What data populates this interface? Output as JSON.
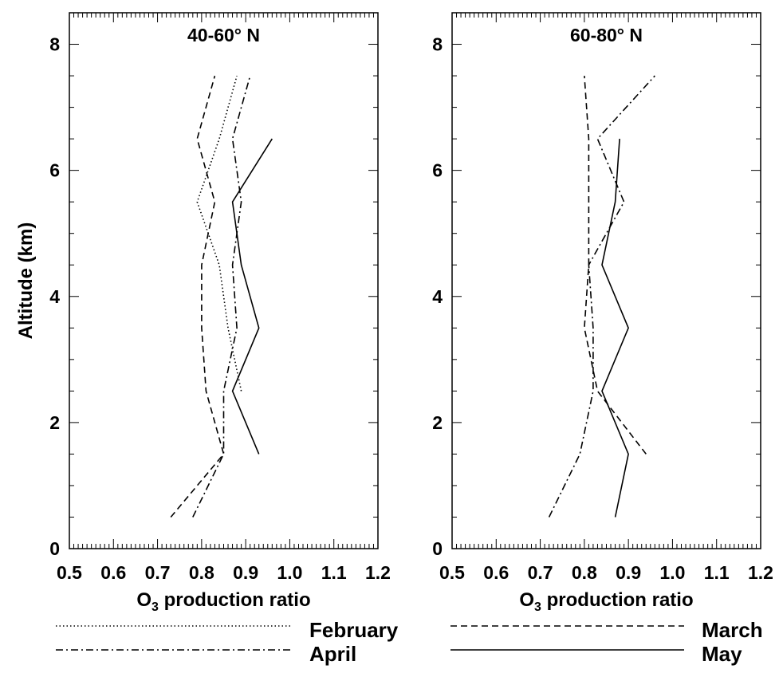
{
  "chart_data": [
    {
      "type": "line",
      "title": "40-60° N",
      "xlabel": "O3 production ratio",
      "xlabel_main": "O",
      "xlabel_sub": "3",
      "xlabel_rest": " production ratio",
      "ylabel": "Altitude (km)",
      "xlim": [
        0.5,
        1.2
      ],
      "ylim": [
        0,
        8.5
      ],
      "xticks": [
        "0.5",
        "0.6",
        "0.7",
        "0.8",
        "0.9",
        "1.0",
        "1.1",
        "1.2"
      ],
      "yticks": [
        "0",
        "2",
        "4",
        "6",
        "8"
      ],
      "series": [
        {
          "name": "February",
          "points": [
            [
              0.89,
              2.5
            ],
            [
              0.86,
              3.5
            ],
            [
              0.84,
              4.5
            ],
            [
              0.79,
              5.5
            ],
            [
              0.84,
              6.5
            ],
            [
              0.88,
              7.5
            ]
          ]
        },
        {
          "name": "March",
          "points": [
            [
              0.73,
              0.5
            ],
            [
              0.85,
              1.5
            ],
            [
              0.81,
              2.5
            ],
            [
              0.8,
              3.5
            ],
            [
              0.8,
              4.5
            ],
            [
              0.83,
              5.5
            ],
            [
              0.79,
              6.5
            ],
            [
              0.83,
              7.5
            ]
          ]
        },
        {
          "name": "April",
          "points": [
            [
              0.78,
              0.5
            ],
            [
              0.85,
              1.5
            ],
            [
              0.85,
              2.5
            ],
            [
              0.88,
              3.5
            ],
            [
              0.87,
              4.5
            ],
            [
              0.89,
              5.5
            ],
            [
              0.87,
              6.5
            ],
            [
              0.91,
              7.5
            ]
          ]
        },
        {
          "name": "May",
          "points": [
            [
              0.93,
              1.5
            ],
            [
              0.87,
              2.5
            ],
            [
              0.93,
              3.5
            ],
            [
              0.89,
              4.5
            ],
            [
              0.87,
              5.5
            ],
            [
              0.96,
              6.5
            ]
          ]
        }
      ]
    },
    {
      "type": "line",
      "title": "60-80° N",
      "xlabel": "O3 production ratio",
      "xlabel_main": "O",
      "xlabel_sub": "3",
      "xlabel_rest": " production ratio",
      "ylabel": "",
      "xlim": [
        0.5,
        1.2
      ],
      "ylim": [
        0,
        8.5
      ],
      "xticks": [
        "0.5",
        "0.6",
        "0.7",
        "0.8",
        "0.9",
        "1.0",
        "1.1",
        "1.2"
      ],
      "yticks": [
        "0",
        "2",
        "4",
        "6",
        "8"
      ],
      "series": [
        {
          "name": "March",
          "points": [
            [
              0.94,
              1.5
            ],
            [
              0.83,
              2.5
            ],
            [
              0.8,
              3.5
            ],
            [
              0.81,
              4.5
            ],
            [
              0.81,
              5.5
            ],
            [
              0.81,
              6.5
            ],
            [
              0.8,
              7.5
            ]
          ]
        },
        {
          "name": "April",
          "points": [
            [
              0.72,
              0.5
            ],
            [
              0.79,
              1.5
            ],
            [
              0.82,
              2.5
            ],
            [
              0.82,
              3.5
            ],
            [
              0.81,
              4.5
            ],
            [
              0.89,
              5.5
            ],
            [
              0.83,
              6.5
            ],
            [
              0.96,
              7.5
            ]
          ]
        },
        {
          "name": "May",
          "points": [
            [
              0.87,
              0.5
            ],
            [
              0.9,
              1.5
            ],
            [
              0.84,
              2.5
            ],
            [
              0.9,
              3.5
            ],
            [
              0.84,
              4.5
            ],
            [
              0.87,
              5.5
            ],
            [
              0.88,
              6.5
            ]
          ]
        }
      ]
    }
  ],
  "legend": [
    {
      "label": "February",
      "style": "dotted"
    },
    {
      "label": "March",
      "style": "dashed"
    },
    {
      "label": "April",
      "style": "dashdot"
    },
    {
      "label": "May",
      "style": "solid"
    }
  ]
}
